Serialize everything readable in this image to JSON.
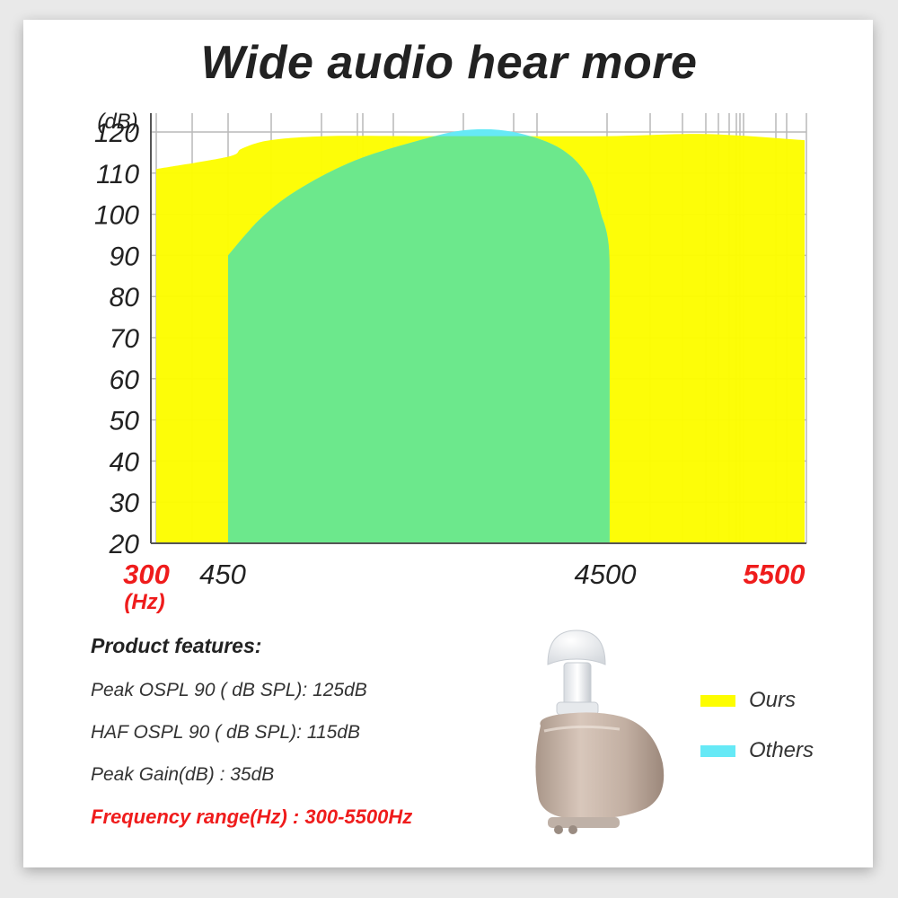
{
  "title": "Wide audio  hear more",
  "colors": {
    "ours": "#fdfd00",
    "others": "#66e9f6",
    "overlap": "#6ce88c",
    "accent_red": "#ef1c1c"
  },
  "chart_data": {
    "type": "area",
    "y_unit": "(dB)",
    "x_unit": "(Hz)",
    "y_ticks": [
      120,
      110,
      100,
      90,
      80,
      70,
      60,
      50,
      40,
      30,
      20
    ],
    "ylim": [
      20,
      120
    ],
    "x_ticks": [
      {
        "label": "300",
        "value": 300,
        "highlight": true
      },
      {
        "label": "450",
        "value": 450,
        "highlight": false
      },
      {
        "label": "4500",
        "value": 4500,
        "highlight": false
      },
      {
        "label": "5500",
        "value": 5500,
        "highlight": true
      }
    ],
    "grid": true,
    "series": [
      {
        "name": "Ours",
        "color": "#fdfd00",
        "x": [
          300,
          450,
          600,
          900,
          1500,
          2500,
          3500,
          4500,
          5000,
          5500
        ],
        "y": [
          111,
          114,
          116,
          118,
          119,
          119,
          119,
          119,
          119.5,
          118
        ]
      },
      {
        "name": "Others",
        "color": "#66e9f6",
        "x": [
          450,
          800,
          1200,
          1800,
          2500,
          3000,
          3500,
          4000,
          4300,
          4450
        ],
        "y": [
          90,
          99,
          106,
          113,
          118,
          120.5,
          120,
          116,
          109,
          99
        ]
      }
    ]
  },
  "features": {
    "heading": "Product features:",
    "lines": [
      "Peak OSPL 90 ( dB SPL): 125dB",
      "HAF  OSPL 90 ( dB SPL): 115dB",
      "Peak  Gain(dB) : 35dB"
    ],
    "highlight": "Frequency range(Hz) : 300-5500Hz"
  },
  "legend": [
    {
      "label": "Ours",
      "color": "#fdfd00"
    },
    {
      "label": "Others",
      "color": "#66e9f6"
    }
  ],
  "product_image": "hearing-aid-device"
}
